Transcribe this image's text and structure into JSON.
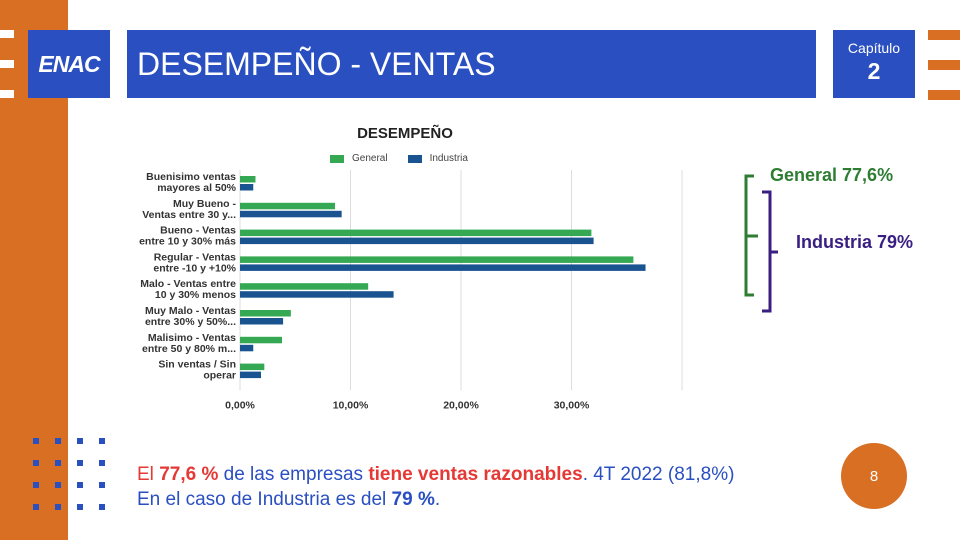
{
  "brand": {
    "logo": "ENAC",
    "orange": "#d86f23",
    "blue": "#2a4fc1"
  },
  "header": {
    "title": "DESEMPEÑO - VENTAS",
    "chapter_label": "Capítulo",
    "chapter_number": "2"
  },
  "chart_data": {
    "type": "bar",
    "orientation": "horizontal",
    "title": "DESEMPEÑO",
    "categories": [
      "Buenisimo ventas mayores al 50%",
      "Muy Bueno - Ventas entre 30 y...",
      "Bueno - Ventas entre 10 y 30% más",
      "Regular - Ventas entre -10 y +10%",
      "Malo - Ventas entre 10 y 30% menos",
      "Muy Malo - Ventas entre 30% y 50%...",
      "Malisimo - Ventas entre 50 y 80% m...",
      "Sin ventas / Sin operar"
    ],
    "category_lines": [
      [
        "Buenisimo ventas",
        "mayores al 50%"
      ],
      [
        "Muy Bueno -",
        "Ventas entre 30 y..."
      ],
      [
        "Bueno - Ventas",
        "entre 10 y 30% más"
      ],
      [
        "Regular - Ventas",
        "entre -10 y +10%"
      ],
      [
        "Malo - Ventas entre",
        "10 y 30% menos"
      ],
      [
        "Muy Malo - Ventas",
        "entre 30% y 50%..."
      ],
      [
        "Malisimo - Ventas",
        "entre 50 y 80% m..."
      ],
      [
        "Sin ventas / Sin",
        "operar"
      ]
    ],
    "series": [
      {
        "name": "General",
        "color": "#34a853",
        "values": [
          1.4,
          8.6,
          31.8,
          35.6,
          11.6,
          4.6,
          3.8,
          2.2
        ]
      },
      {
        "name": "Industria",
        "color": "#1a5490",
        "values": [
          1.2,
          9.2,
          32.0,
          36.7,
          13.9,
          3.9,
          1.2,
          1.9
        ]
      }
    ],
    "xlim": [
      0,
      40
    ],
    "xticks": [
      0,
      10,
      20,
      30
    ],
    "xtick_labels": [
      "0,00%",
      "10,00%",
      "20,00%",
      "30,00%"
    ],
    "grid": true,
    "legend": "top"
  },
  "annotations": {
    "general": "General 77,6%",
    "industria": "Industria 79%"
  },
  "bottom": {
    "l1_a": "El ",
    "l1_b": "77,6 %",
    "l1_c": " de las empresas ",
    "l1_d": "tiene ventas razonables",
    "l1_e": ". 4T 2022 (81,8%)",
    "l2_a": "En el caso de Industria es del ",
    "l2_b": "79 %",
    "l2_c": "."
  },
  "page_number": "8"
}
